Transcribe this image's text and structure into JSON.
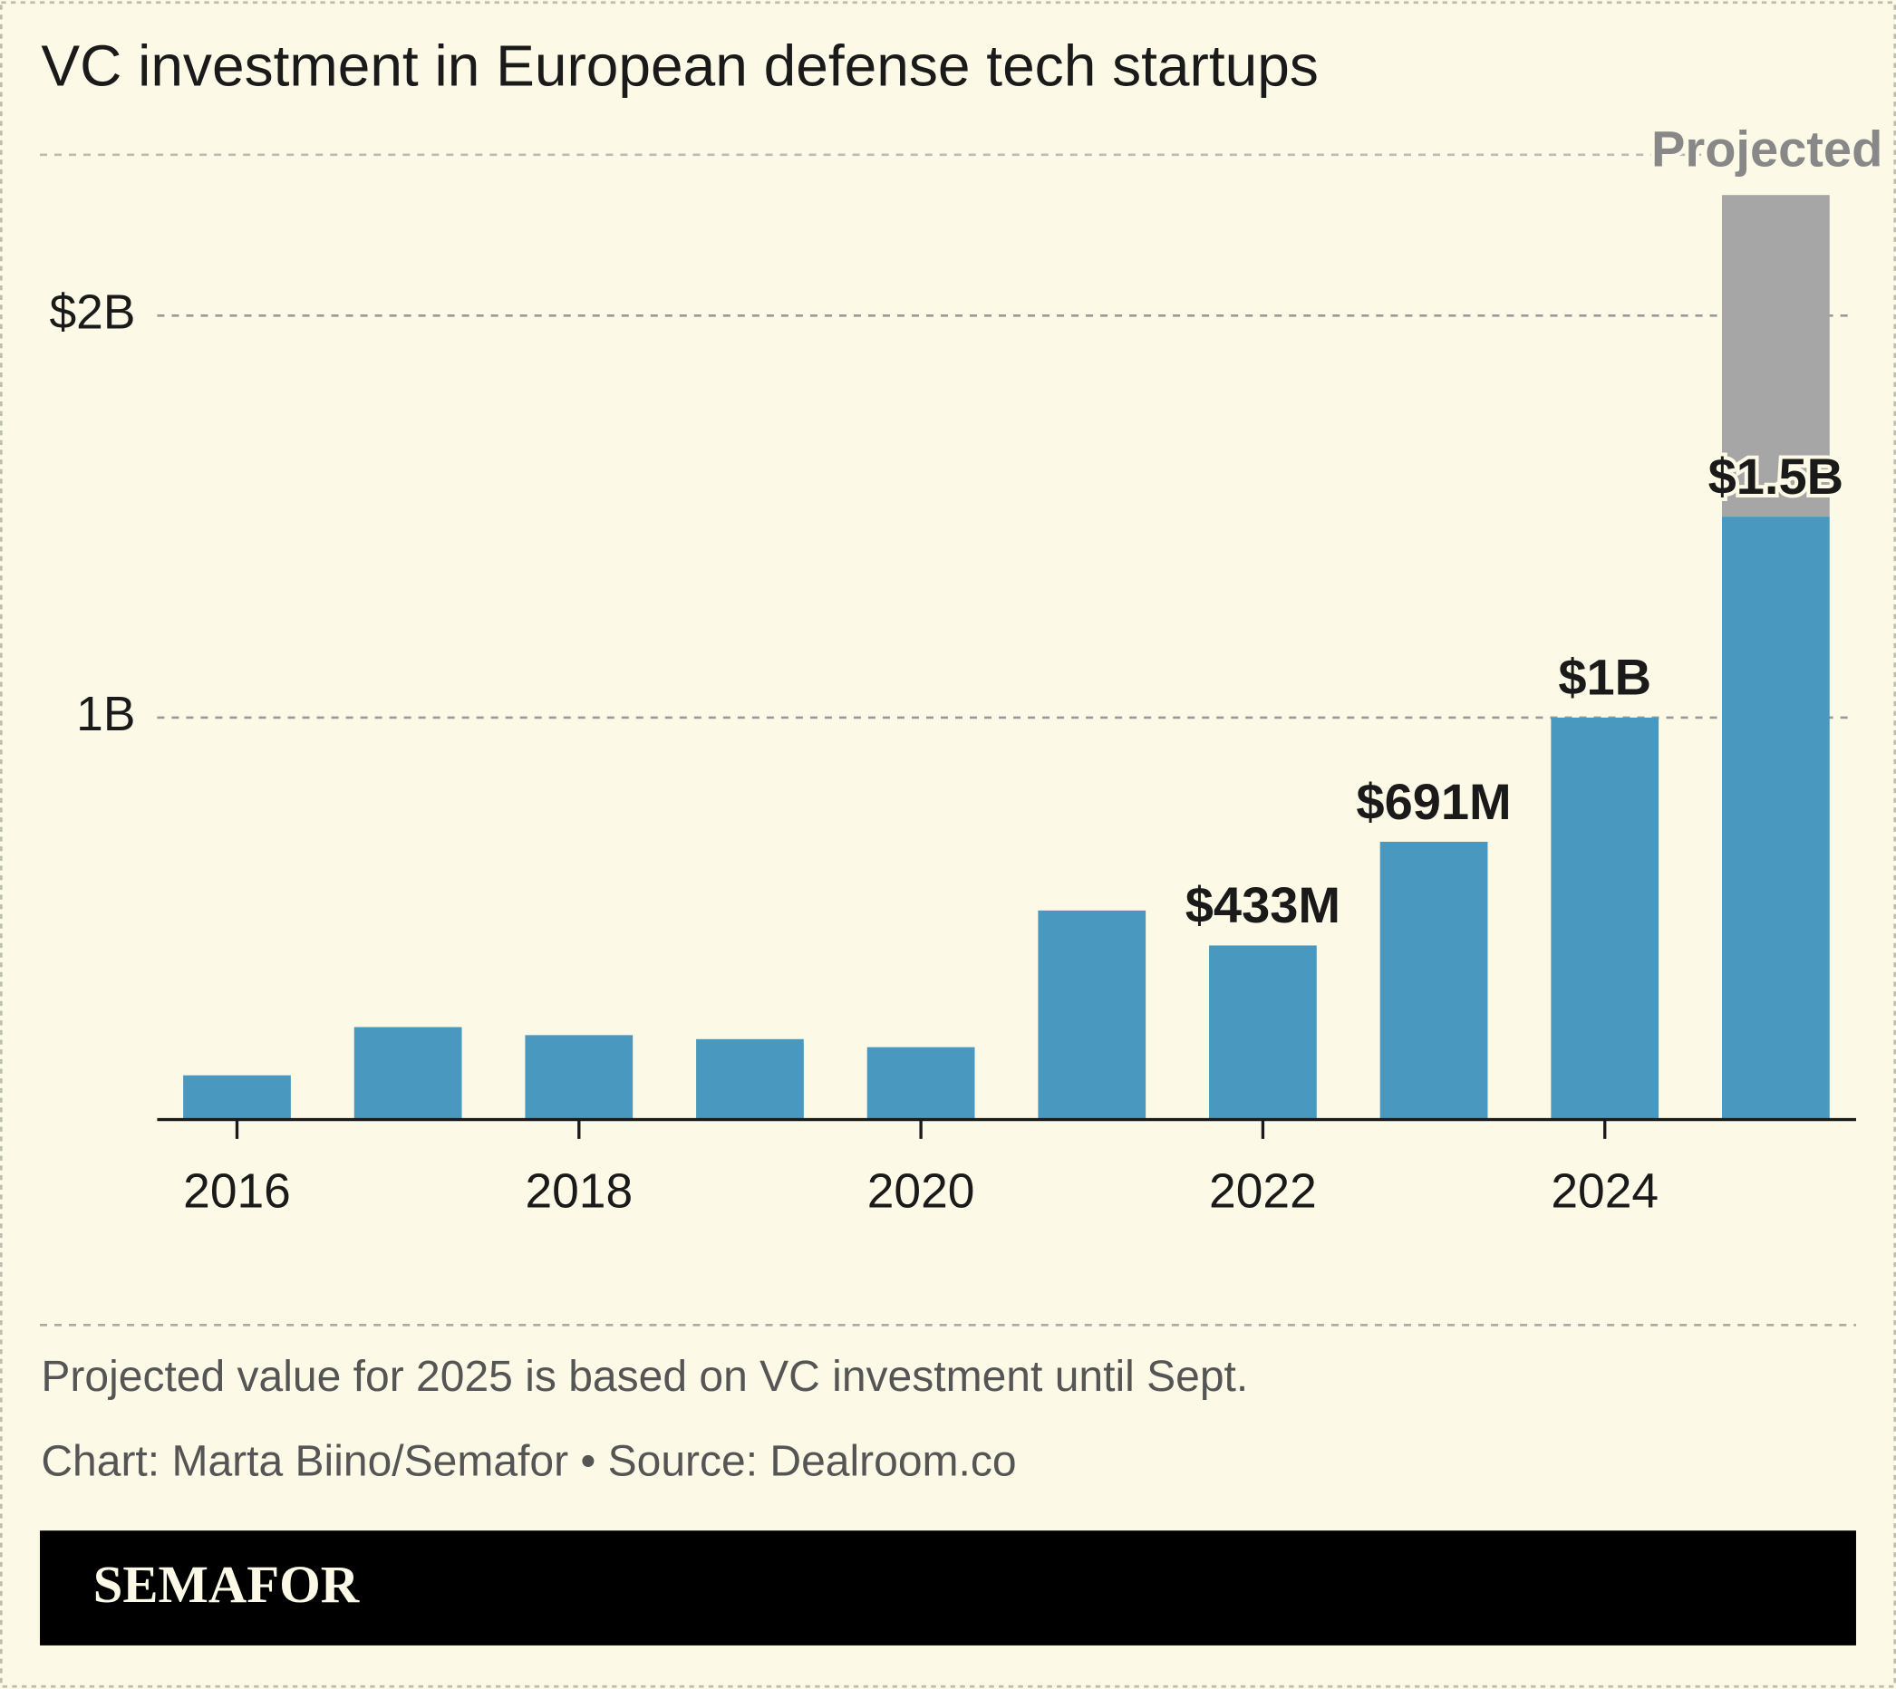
{
  "chart_data": {
    "type": "stacked-bar",
    "title": "VC investment in European defense tech startups",
    "categories": [
      "2016",
      null,
      "2018",
      null,
      "2020",
      null,
      "2022",
      null,
      "2024",
      null
    ],
    "series": [
      {
        "color": "#4898bf",
        "values": [
          0.11,
          0.23,
          0.21,
          0.2,
          0.18,
          0.52,
          0.433,
          0.691,
          1,
          1.5
        ],
        "value_labels": [
          null,
          null,
          null,
          null,
          null,
          null,
          "$433M",
          "$691M",
          "$1B",
          "$1.5B"
        ]
      },
      {
        "name": "Projected",
        "color": "#a6a6a6",
        "values": [
          null,
          null,
          null,
          null,
          null,
          null,
          null,
          null,
          null,
          0.8
        ]
      }
    ],
    "ylim": [
      0,
      2.4
    ],
    "yticks": [
      {
        "value": 1,
        "label": "1B"
      },
      {
        "value": 2,
        "label": "$2B"
      }
    ],
    "grid": true,
    "note": "Projected value for 2025 is based on VC investment until Sept.",
    "credit": "Chart: Marta Biino/Semafor • Source: Dealroom.co",
    "logo": "SEMAFOR"
  }
}
